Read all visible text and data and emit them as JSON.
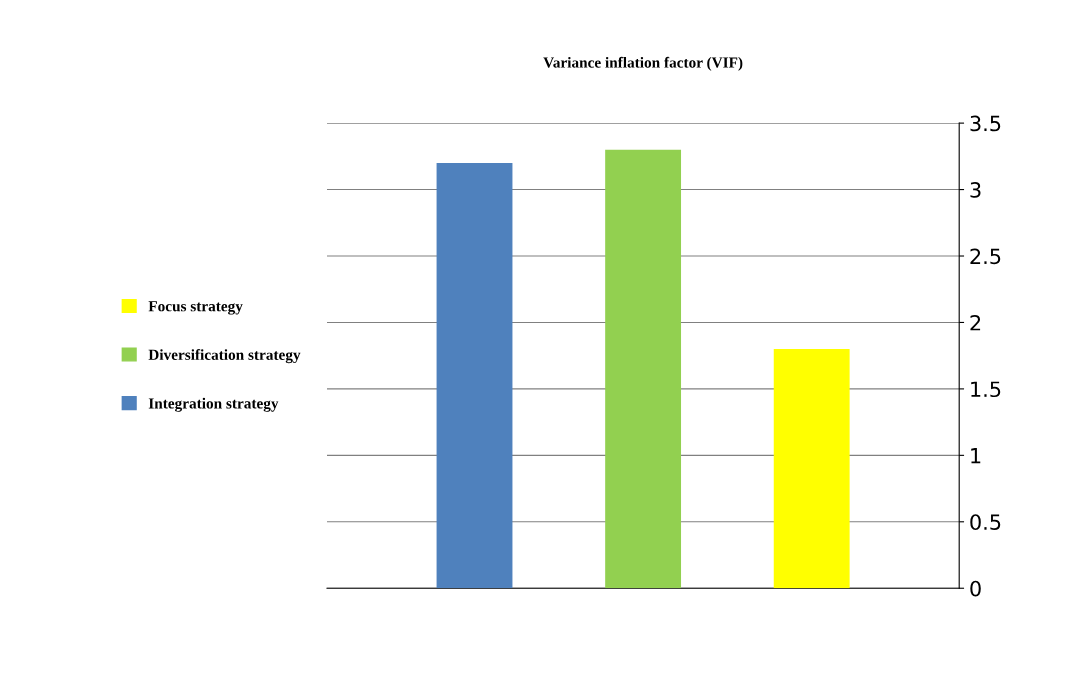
{
  "chart_data": {
    "type": "bar",
    "title": "Variance inflation factor (VIF)",
    "categories": [
      null
    ],
    "series": [
      {
        "name": "Integration strategy",
        "color": "#4f81bd",
        "values": [
          3.2
        ]
      },
      {
        "name": "Diversification strategy",
        "color": "#92d050",
        "values": [
          3.3
        ]
      },
      {
        "name": "Focus strategy",
        "color": "#ffff00",
        "values": [
          1.8
        ]
      }
    ],
    "ylim": [
      0,
      3.5
    ],
    "yticks": [
      0,
      0.5,
      1,
      1.5,
      2,
      2.5,
      3,
      3.5
    ],
    "grid": "y",
    "legend": "left"
  }
}
